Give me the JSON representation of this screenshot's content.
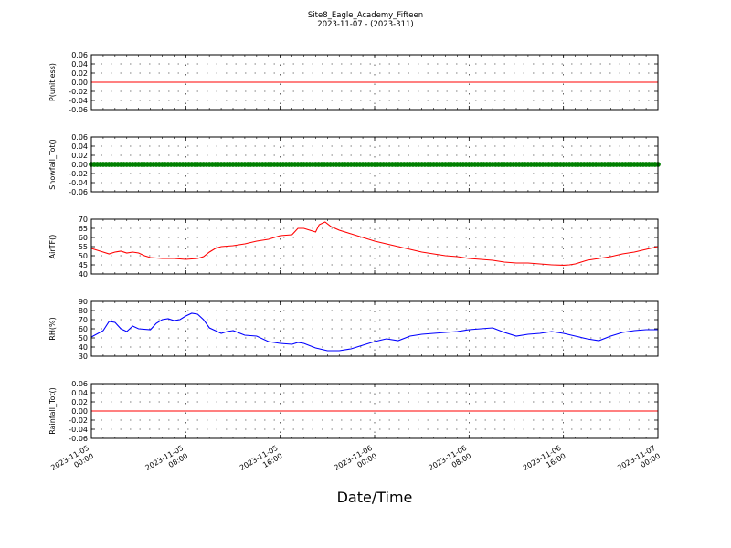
{
  "chart_data": {
    "type": "line",
    "title": "Site8_Eagle_Academy_Fifteen",
    "subtitle": "2023-11-07 - (2023-311)",
    "xlabel": "Date/Time",
    "x_ticks": [
      [
        "2023-11-05",
        "00:00"
      ],
      [
        "2023-11-05",
        "08:00"
      ],
      [
        "2023-11-05",
        "16:00"
      ],
      [
        "2023-11-06",
        "00:00"
      ],
      [
        "2023-11-06",
        "08:00"
      ],
      [
        "2023-11-06",
        "16:00"
      ],
      [
        "2023-11-07",
        "00:00"
      ]
    ],
    "xlim_hours": [
      0,
      48
    ],
    "grid": true,
    "panels": [
      {
        "ylabel": "P(unitless)",
        "ylim": [
          -0.06,
          0.06
        ],
        "yticks": [
          "-0.06",
          "-0.04",
          "-0.02",
          "0.00",
          "0.02",
          "0.04",
          "0.06"
        ],
        "series": [
          {
            "color": "#ff0000",
            "style": "line",
            "points": [
              [
                0,
                0
              ],
              [
                48,
                0
              ]
            ]
          }
        ]
      },
      {
        "ylabel": "Snowfall_Tot()",
        "ylim": [
          -0.06,
          0.06
        ],
        "yticks": [
          "-0.06",
          "-0.04",
          "-0.02",
          "0.00",
          "0.02",
          "0.04",
          "0.06"
        ],
        "series": [
          {
            "color": "#008000",
            "style": "markers",
            "constant": 0
          }
        ]
      },
      {
        "ylabel": "AirTF()",
        "ylim": [
          40,
          70
        ],
        "yticks": [
          "40",
          "45",
          "50",
          "55",
          "60",
          "65",
          "70"
        ],
        "series": [
          {
            "color": "#ff0000",
            "style": "line",
            "points": [
              [
                0,
                54
              ],
              [
                0.5,
                53
              ],
              [
                1,
                52
              ],
              [
                1.5,
                51
              ],
              [
                2,
                52
              ],
              [
                2.5,
                52.5
              ],
              [
                3,
                51.5
              ],
              [
                3.5,
                52
              ],
              [
                4,
                51.5
              ],
              [
                4.5,
                50
              ],
              [
                5,
                49
              ],
              [
                6,
                48.5
              ],
              [
                7,
                48.5
              ],
              [
                8,
                48
              ],
              [
                9,
                48.5
              ],
              [
                9.5,
                49.5
              ],
              [
                10,
                52
              ],
              [
                10.5,
                54
              ],
              [
                11,
                55
              ],
              [
                12,
                55.5
              ],
              [
                13,
                56.5
              ],
              [
                14,
                58
              ],
              [
                15,
                59
              ],
              [
                16,
                61
              ],
              [
                17,
                61.5
              ],
              [
                17.5,
                65
              ],
              [
                18,
                65
              ],
              [
                18.5,
                64
              ],
              [
                19,
                63
              ],
              [
                19.3,
                67
              ],
              [
                19.8,
                68.5
              ],
              [
                20.3,
                66
              ],
              [
                21,
                64
              ],
              [
                22,
                62
              ],
              [
                23,
                60
              ],
              [
                24,
                58
              ],
              [
                25,
                56.5
              ],
              [
                26,
                55
              ],
              [
                27,
                53.5
              ],
              [
                28,
                52
              ],
              [
                29,
                51
              ],
              [
                30,
                50
              ],
              [
                31,
                49.5
              ],
              [
                32,
                48.5
              ],
              [
                33,
                48
              ],
              [
                34,
                47.5
              ],
              [
                35,
                46.5
              ],
              [
                36,
                46
              ],
              [
                37,
                46
              ],
              [
                38,
                45.5
              ],
              [
                39,
                45
              ],
              [
                40,
                44.8
              ],
              [
                40.5,
                45
              ],
              [
                41,
                45.5
              ],
              [
                41.5,
                46.5
              ],
              [
                42,
                47.5
              ],
              [
                43,
                48.5
              ],
              [
                44,
                49.5
              ],
              [
                45,
                51
              ],
              [
                46,
                52
              ],
              [
                47,
                53.5
              ],
              [
                48,
                55
              ]
            ]
          }
        ]
      },
      {
        "ylabel": "RH(%)",
        "ylim": [
          30,
          90
        ],
        "yticks": [
          "30",
          "40",
          "50",
          "60",
          "70",
          "80",
          "90"
        ],
        "series": [
          {
            "color": "#0000ff",
            "style": "line",
            "points": [
              [
                0,
                51
              ],
              [
                1,
                58
              ],
              [
                1.5,
                68
              ],
              [
                2,
                67
              ],
              [
                2.5,
                60
              ],
              [
                3,
                57
              ],
              [
                3.5,
                63
              ],
              [
                4,
                60
              ],
              [
                5,
                59
              ],
              [
                5.5,
                66
              ],
              [
                6,
                70
              ],
              [
                6.5,
                71
              ],
              [
                7,
                69
              ],
              [
                7.5,
                70
              ],
              [
                8,
                74
              ],
              [
                8.5,
                77
              ],
              [
                9,
                76
              ],
              [
                9.5,
                70
              ],
              [
                10,
                61
              ],
              [
                10.5,
                58
              ],
              [
                11,
                55
              ],
              [
                11.5,
                57
              ],
              [
                12,
                58
              ],
              [
                13,
                53
              ],
              [
                14,
                52
              ],
              [
                15,
                46
              ],
              [
                16,
                44
              ],
              [
                17,
                43
              ],
              [
                17.5,
                45
              ],
              [
                18,
                44
              ],
              [
                19,
                39
              ],
              [
                20,
                36
              ],
              [
                21,
                36
              ],
              [
                22,
                38
              ],
              [
                23,
                42
              ],
              [
                24,
                46
              ],
              [
                25,
                49
              ],
              [
                26,
                47
              ],
              [
                27,
                52
              ],
              [
                28,
                54
              ],
              [
                29,
                55
              ],
              [
                30,
                56
              ],
              [
                31,
                57
              ],
              [
                32,
                59
              ],
              [
                33,
                60
              ],
              [
                34,
                61
              ],
              [
                35,
                56
              ],
              [
                36,
                52
              ],
              [
                37,
                54
              ],
              [
                38,
                55
              ],
              [
                39,
                57
              ],
              [
                40,
                55
              ],
              [
                41,
                52
              ],
              [
                42,
                49
              ],
              [
                43,
                47
              ],
              [
                44,
                52
              ],
              [
                45,
                56
              ],
              [
                46,
                58
              ],
              [
                47,
                59
              ],
              [
                48,
                59
              ]
            ]
          }
        ]
      },
      {
        "ylabel": "Rainfall_Tot()",
        "ylim": [
          -0.06,
          0.06
        ],
        "yticks": [
          "-0.06",
          "-0.04",
          "-0.02",
          "0.00",
          "0.02",
          "0.04",
          "0.06"
        ],
        "series": [
          {
            "color": "#ff0000",
            "style": "line",
            "points": [
              [
                0,
                0
              ],
              [
                48,
                0
              ]
            ]
          }
        ]
      }
    ]
  }
}
